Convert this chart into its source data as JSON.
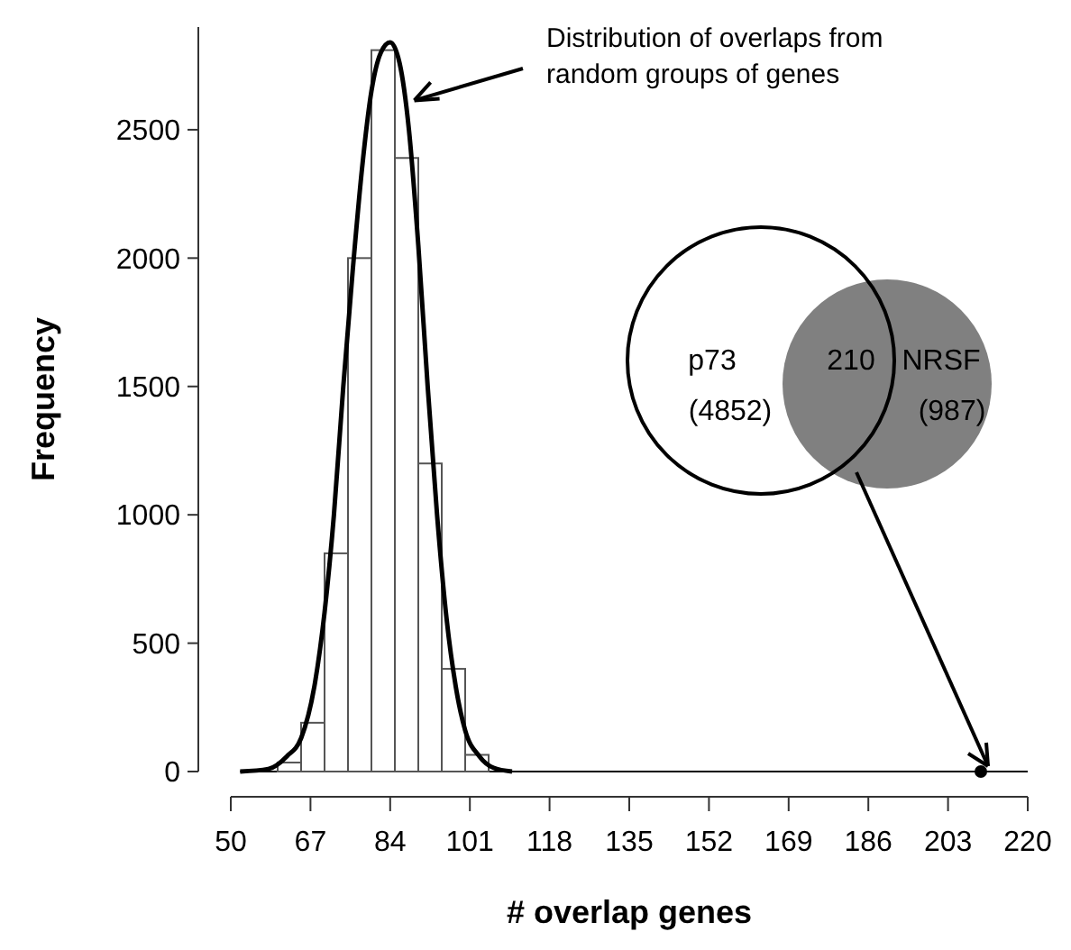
{
  "chart_data": {
    "type": "histogram",
    "xlabel": "# overlap genes",
    "ylabel": "Frequency",
    "bins": [
      60,
      65,
      70,
      75,
      80,
      85,
      90,
      95,
      100,
      105
    ],
    "values": [
      35,
      190,
      850,
      2000,
      2810,
      2390,
      1200,
      400,
      65
    ],
    "color": "#ffffff",
    "series": [
      {
        "type": "line",
        "color": "#000000",
        "x": [
          52,
          58,
          62,
          65,
          68,
          70,
          72,
          74,
          76,
          78,
          80,
          82,
          84,
          86,
          88,
          90,
          92,
          94,
          96,
          98,
          100,
          103,
          106,
          110
        ],
        "values": [
          0,
          10,
          60,
          130,
          350,
          620,
          1000,
          1500,
          1950,
          2350,
          2650,
          2800,
          2840,
          2760,
          2500,
          2050,
          1500,
          1000,
          600,
          330,
          160,
          60,
          15,
          0
        ]
      },
      {
        "type": "scatter",
        "color": "#000000",
        "marker": "circle",
        "x": [
          210
        ],
        "values": [
          0
        ]
      }
    ],
    "xlim": [
      50,
      220
    ],
    "xticks": [
      50,
      67,
      84,
      101,
      118,
      135,
      152,
      169,
      186,
      203,
      220
    ],
    "ylim": [
      0,
      2900
    ],
    "yticks": [
      0,
      500,
      1000,
      1500,
      2000,
      2500
    ],
    "ref_lines": [
      {
        "axis": "y",
        "value": 0
      }
    ],
    "annotations": [
      {
        "text": "Distribution of overlaps from random groups of genes",
        "x": 88,
        "y": 2600
      },
      "p73",
      "(4852)",
      "210",
      "NRSF",
      "(987)"
    ]
  }
}
